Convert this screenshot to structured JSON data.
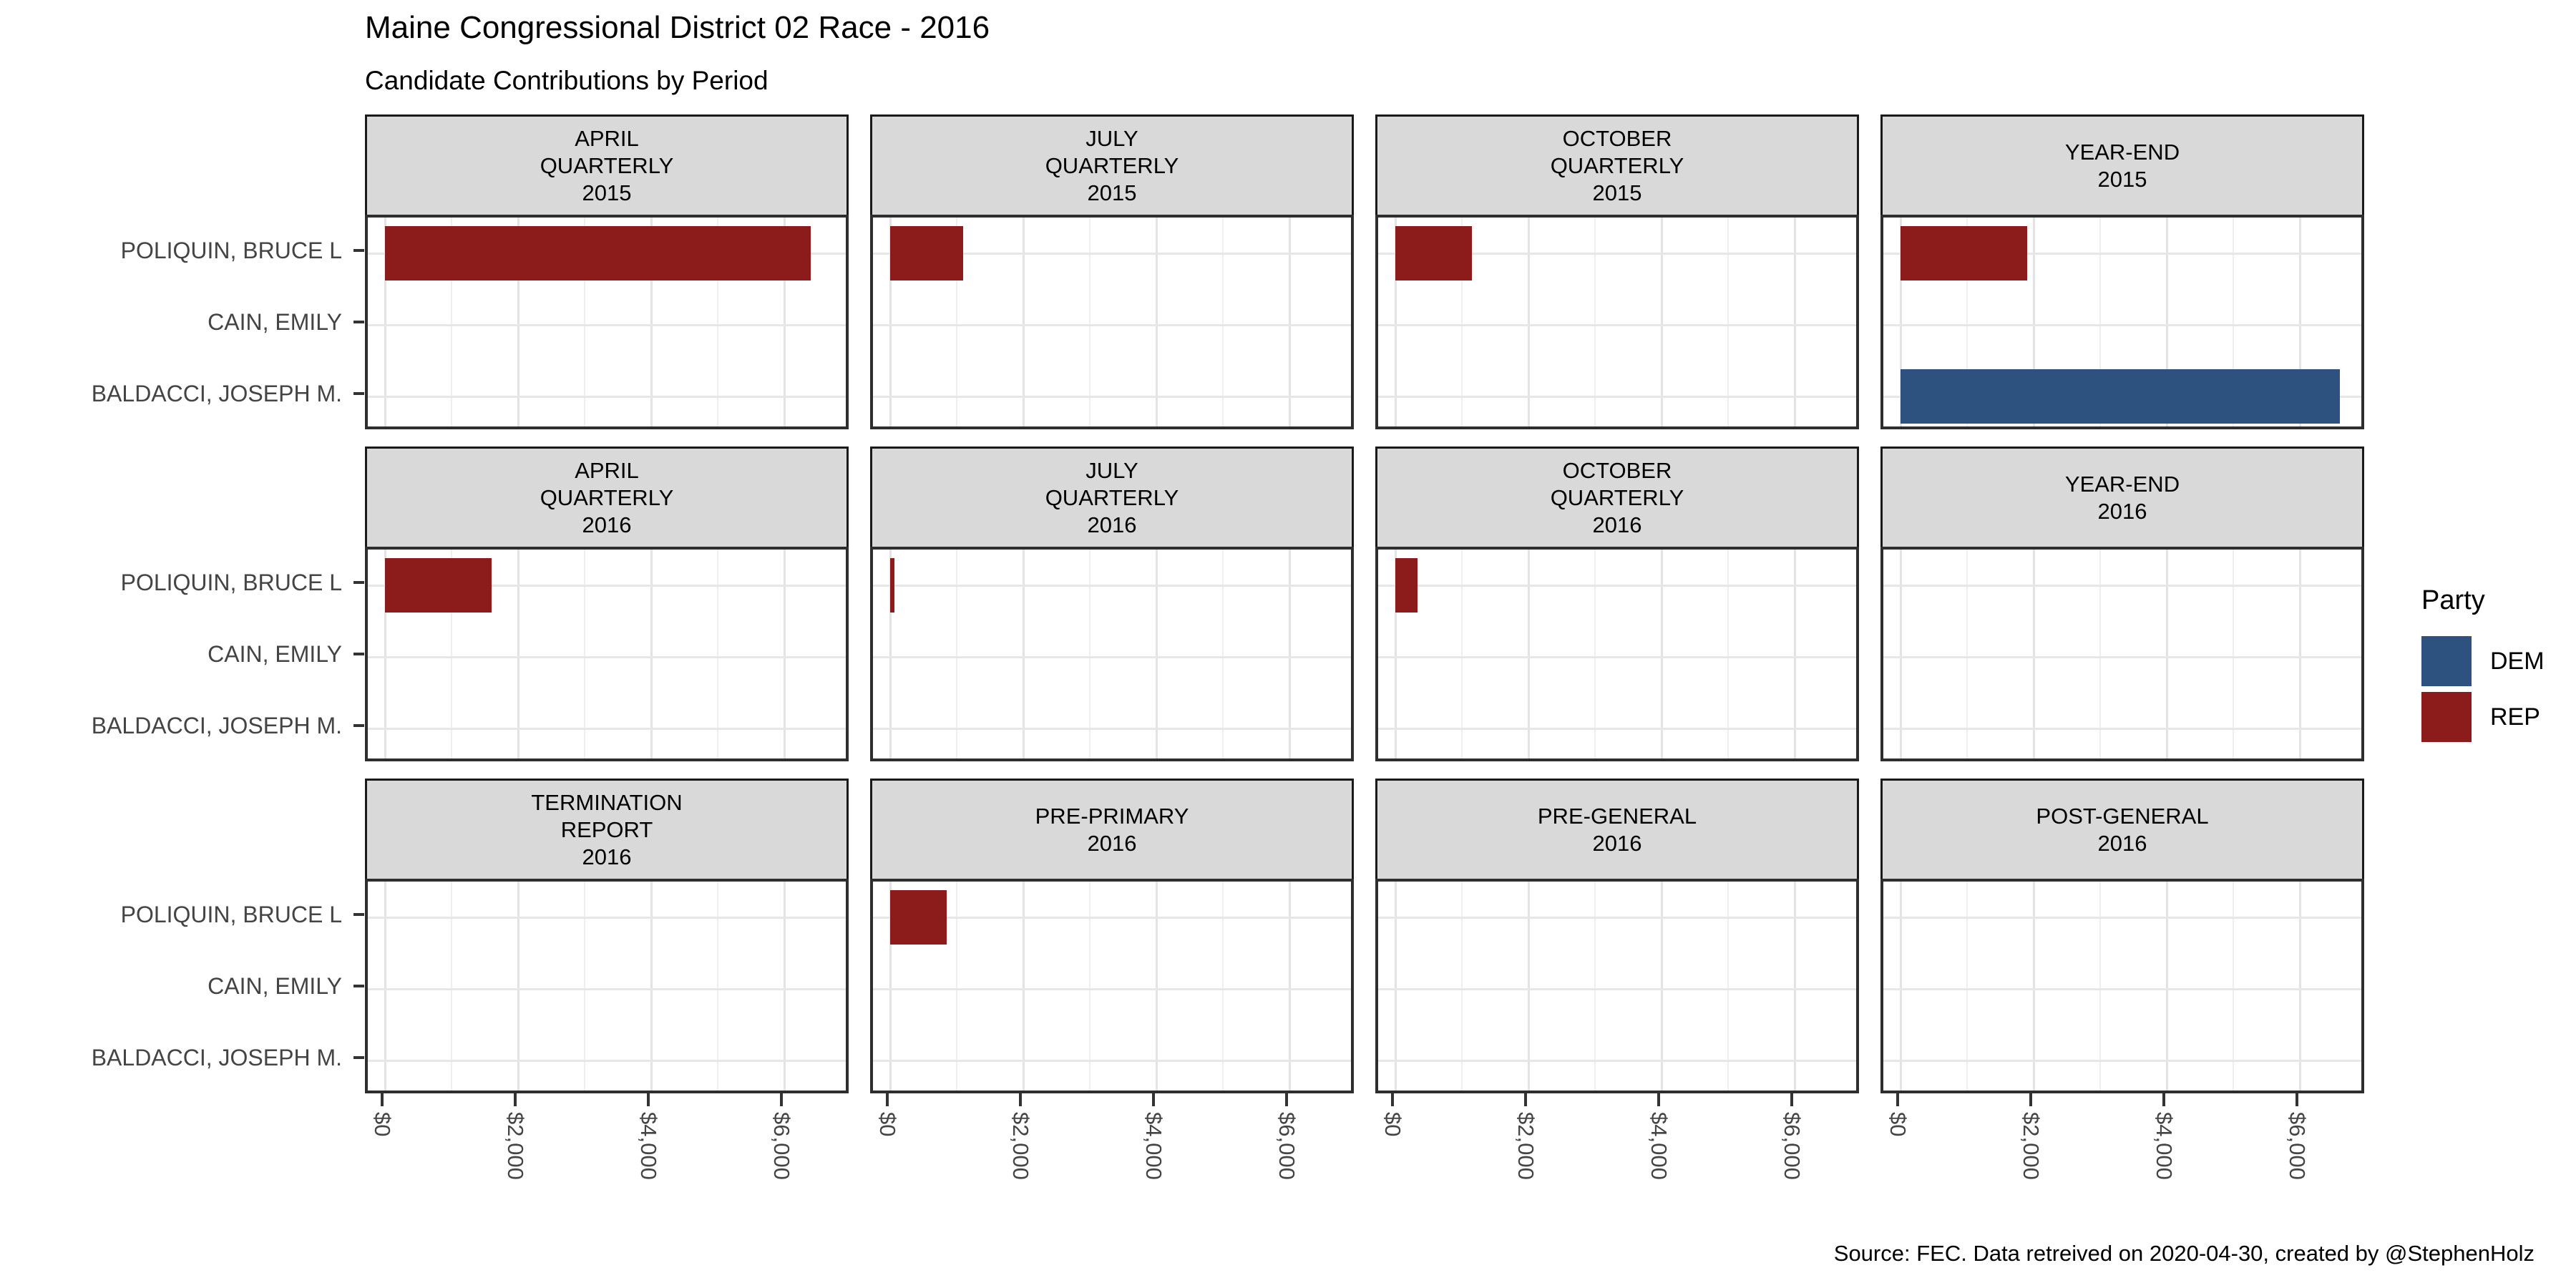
{
  "title": "Maine Congressional District 02 Race - 2016",
  "subtitle": "Candidate Contributions by Period",
  "caption": "Source: FEC. Data retreived on 2020-04-30, created by @StephenHolz",
  "legend": {
    "title": "Party",
    "entries": [
      {
        "label": "DEM",
        "color": "#2E527F"
      },
      {
        "label": "REP",
        "color": "#8C1B1B"
      }
    ]
  },
  "chart_data": {
    "type": "bar",
    "orientation": "horizontal",
    "title": "Maine Congressional District 02 Race - 2016",
    "subtitle": "Candidate Contributions by Period",
    "ylabel_categories": [
      "POLIQUIN, BRUCE L",
      "CAIN, EMILY",
      "BALDACCI, JOSEPH M."
    ],
    "x_ticks_labels": [
      "$0",
      "$2,000",
      "$4,000",
      "$6,000"
    ],
    "x_tick_values": [
      0,
      2000,
      4000,
      6000
    ],
    "xlim": [
      0,
      7000
    ],
    "grid": "on",
    "legend_position": "right",
    "party_colors": {
      "DEM": "#2E527F",
      "REP": "#8C1B1B"
    },
    "facets": [
      {
        "label_lines": [
          "APRIL",
          "QUARTERLY",
          "2015"
        ],
        "bars": [
          {
            "candidate": "POLIQUIN, BRUCE L",
            "party": "REP",
            "value": 6400
          }
        ]
      },
      {
        "label_lines": [
          "JULY",
          "QUARTERLY",
          "2015"
        ],
        "bars": [
          {
            "candidate": "POLIQUIN, BRUCE L",
            "party": "REP",
            "value": 1100
          }
        ]
      },
      {
        "label_lines": [
          "OCTOBER",
          "QUARTERLY",
          "2015"
        ],
        "bars": [
          {
            "candidate": "POLIQUIN, BRUCE L",
            "party": "REP",
            "value": 1150
          }
        ]
      },
      {
        "label_lines": [
          "YEAR-END",
          "2015"
        ],
        "bars": [
          {
            "candidate": "POLIQUIN, BRUCE L",
            "party": "REP",
            "value": 1900
          },
          {
            "candidate": "BALDACCI, JOSEPH M.",
            "party": "DEM",
            "value": 6600
          }
        ]
      },
      {
        "label_lines": [
          "APRIL",
          "QUARTERLY",
          "2016"
        ],
        "bars": [
          {
            "candidate": "POLIQUIN, BRUCE L",
            "party": "REP",
            "value": 1600
          }
        ]
      },
      {
        "label_lines": [
          "JULY",
          "QUARTERLY",
          "2016"
        ],
        "bars": [
          {
            "candidate": "POLIQUIN, BRUCE L",
            "party": "REP",
            "value": 60
          }
        ]
      },
      {
        "label_lines": [
          "OCTOBER",
          "QUARTERLY",
          "2016"
        ],
        "bars": [
          {
            "candidate": "POLIQUIN, BRUCE L",
            "party": "REP",
            "value": 330
          }
        ]
      },
      {
        "label_lines": [
          "YEAR-END",
          "2016"
        ],
        "bars": []
      },
      {
        "label_lines": [
          "TERMINATION",
          "REPORT",
          "2016"
        ],
        "bars": []
      },
      {
        "label_lines": [
          "PRE-PRIMARY",
          "2016"
        ],
        "bars": [
          {
            "candidate": "POLIQUIN, BRUCE L",
            "party": "REP",
            "value": 850
          }
        ]
      },
      {
        "label_lines": [
          "PRE-GENERAL",
          "2016"
        ],
        "bars": []
      },
      {
        "label_lines": [
          "POST-GENERAL",
          "2016"
        ],
        "bars": []
      }
    ]
  }
}
